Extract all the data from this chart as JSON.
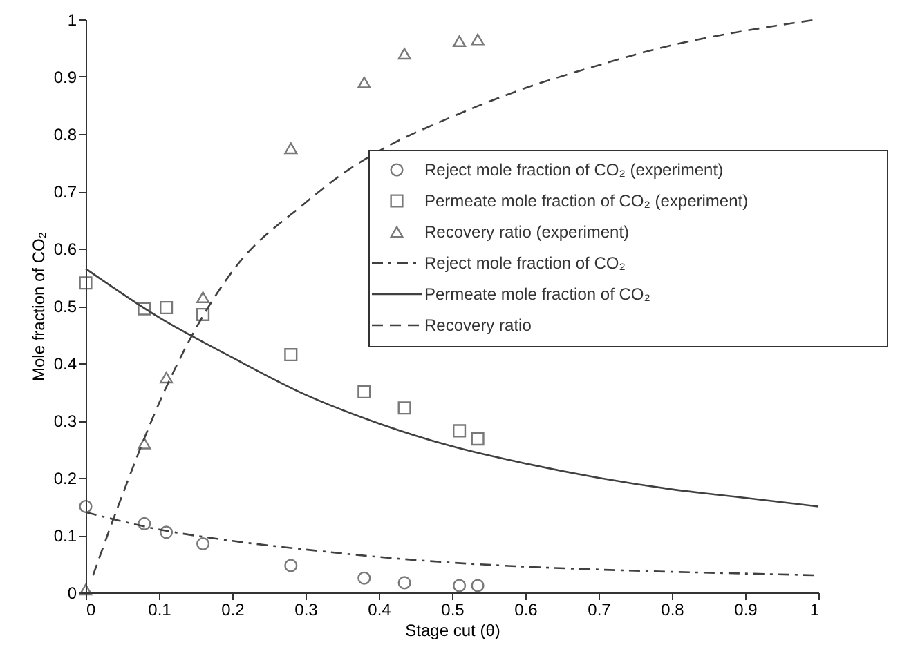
{
  "chart_data": {
    "type": "scatter",
    "xlabel": "Stage cut (θ)",
    "ylabel": "Mole fraction of CO₂",
    "xlim": [
      0,
      1
    ],
    "ylim": [
      0,
      1
    ],
    "xticks": [
      0,
      0.1,
      0.2,
      0.3,
      0.4,
      0.5,
      0.6,
      0.7,
      0.8,
      0.9,
      1
    ],
    "yticks": [
      0,
      0.1,
      0.2,
      0.3,
      0.4,
      0.5,
      0.6,
      0.7,
      0.8,
      0.9,
      1
    ],
    "grid": false,
    "legend": "right",
    "series": [
      {
        "name": "Reject mole fraction of CO₂ (experiment)",
        "marker": "circle",
        "color": "#404040",
        "x": [
          0,
          0.08,
          0.11,
          0.16,
          0.28,
          0.38,
          0.435,
          0.51,
          0.535
        ],
        "values": [
          0.15,
          0.12,
          0.105,
          0.085,
          0.047,
          0.025,
          0.017,
          0.012,
          0.012
        ]
      },
      {
        "name": "Permeate mole fraction of CO₂ (experiment)",
        "marker": "square",
        "color": "#404040",
        "x": [
          0,
          0.08,
          0.11,
          0.16,
          0.28,
          0.38,
          0.435,
          0.51,
          0.535
        ],
        "values": [
          0.54,
          0.495,
          0.497,
          0.485,
          0.415,
          0.35,
          0.322,
          0.282,
          0.268
        ]
      },
      {
        "name": "Recovery ratio (experiment)",
        "marker": "triangle",
        "color": "#404040",
        "x": [
          0,
          0.08,
          0.11,
          0.16,
          0.28,
          0.38,
          0.435,
          0.51,
          0.535
        ],
        "values": [
          0.005,
          0.26,
          0.375,
          0.515,
          0.775,
          0.89,
          0.94,
          0.962,
          0.965
        ]
      },
      {
        "name": "Reject mole fraction of CO₂",
        "type": "line",
        "line_style": "dashdot",
        "color": "#404040",
        "x": [
          0,
          0.1,
          0.2,
          0.3,
          0.4,
          0.5,
          0.6,
          0.7,
          0.8,
          0.9,
          1
        ],
        "values": [
          0.14,
          0.11,
          0.09,
          0.075,
          0.062,
          0.052,
          0.045,
          0.04,
          0.036,
          0.033,
          0.03
        ]
      },
      {
        "name": "Permeate mole fraction of CO₂",
        "type": "line",
        "line_style": "solid",
        "color": "#404040",
        "x": [
          0,
          0.1,
          0.2,
          0.3,
          0.4,
          0.5,
          0.6,
          0.7,
          0.8,
          0.9,
          1
        ],
        "values": [
          0.565,
          0.48,
          0.41,
          0.345,
          0.295,
          0.255,
          0.225,
          0.2,
          0.18,
          0.165,
          0.15
        ]
      },
      {
        "name": "Recovery ratio",
        "type": "line",
        "line_style": "dashed",
        "color": "#404040",
        "x": [
          0.01,
          0.05,
          0.1,
          0.15,
          0.2,
          0.3,
          0.35,
          0.4,
          0.5,
          0.6,
          0.7,
          0.8,
          0.9,
          1
        ],
        "values": [
          0.03,
          0.17,
          0.33,
          0.46,
          0.56,
          0.68,
          0.73,
          0.77,
          0.83,
          0.88,
          0.92,
          0.955,
          0.98,
          1.0
        ]
      }
    ]
  }
}
